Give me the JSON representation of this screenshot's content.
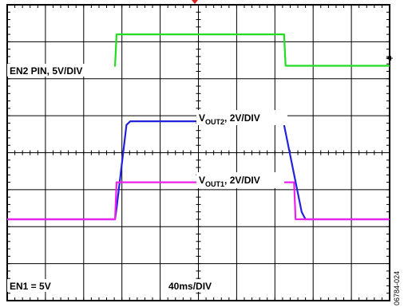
{
  "figure_id": "06784-024",
  "chart_data": {
    "type": "line",
    "grid": true,
    "grid_divisions": {
      "x": 10,
      "y": 8
    },
    "x_scale": "40ms/DIV",
    "xlim": [
      0,
      10
    ],
    "ylim": [
      0,
      8
    ],
    "series": [
      {
        "key": "en2",
        "label": "EN2 PIN, 5V/DIV",
        "color": "#22dd22",
        "x": [
          0,
          2.82,
          2.86,
          7.24,
          7.28,
          10
        ],
        "y": [
          6.35,
          6.35,
          7.2,
          7.2,
          6.35,
          6.35
        ]
      },
      {
        "key": "vout2",
        "label_main": "V",
        "label_sub": "OUT2",
        "label_rest": ", 2V/DIV",
        "color": "#2222dd",
        "x": [
          0,
          2.82,
          2.86,
          3.12,
          3.22,
          7.2,
          7.24,
          7.7,
          7.8,
          10
        ],
        "y": [
          2.2,
          2.2,
          2.5,
          4.75,
          4.85,
          4.85,
          4.75,
          2.4,
          2.2,
          2.2
        ]
      },
      {
        "key": "vout1",
        "label_main": "V",
        "label_sub": "OUT1",
        "label_rest": ", 2V/DIV",
        "color": "#ee22ee",
        "x": [
          0,
          2.82,
          2.86,
          7.5,
          7.54,
          10
        ],
        "y": [
          2.2,
          2.2,
          3.2,
          3.2,
          2.2,
          2.2
        ]
      }
    ],
    "annotations": {
      "en1": "EN1 = 5V",
      "timebase": "40ms/DIV"
    }
  }
}
